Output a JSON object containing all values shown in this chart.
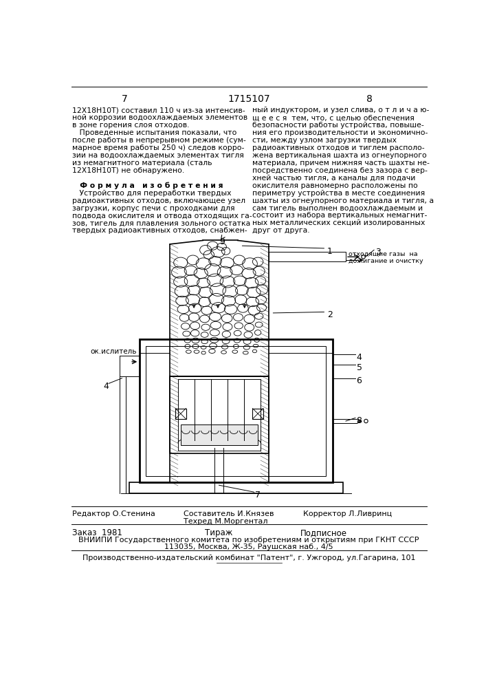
{
  "page_number_left": "7",
  "patent_number": "1715107",
  "page_number_right": "8",
  "left_column_text": [
    "12Х18Н10Т) составил 110 ч из-за интенсив-",
    "ной коррозии водоохлаждаемых элементов",
    "в зоне горения слоя отходов.",
    "   Проведенные испытания показали, что",
    "после работы в непрерывном режиме (сум-",
    "марное время работы 250 ч) следов корро-",
    "зии на водоохлаждаемых элементах тигля",
    "из немагнитного материала (сталь",
    "12Х18Н10Т) не обнаружено.",
    "",
    "   Ф о р м у л а   и з о б р е т е н и я",
    "   Устройство для переработки твердых",
    "радиоактивных отходов, включающее узел",
    "загрузки, корпус печи с проходками для",
    "подвода окислителя и отвода отходящих га-",
    "зов, тигель для плавления зольного остатка",
    "твердых радиоактивных отходов, снабжен-"
  ],
  "right_column_text": [
    "ный индуктором, и узел слива, о т л и ч а ю-",
    "щ е е с я  тем, что, с целью обеспечения",
    "безопасности работы устройства, повыше-",
    "ния его производительности и экономично-",
    "сти, между узлом загрузки твердых",
    "радиоактивных отходов и тиглем располо-",
    "жена вертикальная шахта из огнеупорного",
    "материала, причем нижняя часть шахты не-",
    "посредственно соединена без зазора с вер-",
    "хней частью тигля, а каналы для подачи",
    "окислителя равномерно расположены по",
    "периметру устройства в месте соединения",
    "шахты из огнеупорного материала и тигля, а",
    "сам тигель выполнен водоохлаждаемым и",
    "состоит из набора вертикальных немагнит-",
    "ных металлических секций изолированных",
    "друг от друга."
  ],
  "footer_editor": "Редактор О.Стенина",
  "footer_composer": "Составитель И.Князев",
  "footer_techred": "Техред М.Моргентал",
  "footer_corrector": "Корректор Л.Ливринц",
  "footer_order": "Заказ  1981",
  "footer_tirazh": "Тираж",
  "footer_podpisnoe": "Подписное",
  "footer_vniiipi": "ВНИИПИ Государственного комитета по изобретениям и открытиям при ГКНТ СССР",
  "footer_address": "113035, Москва, Ж-35, Раушская наб., 4/5",
  "footer_patent": "Производственно-издательский комбинат \"Патент\", г. Ужгород, ул.Гагарина, 101",
  "bg_color": "#ffffff",
  "text_color": "#000000"
}
